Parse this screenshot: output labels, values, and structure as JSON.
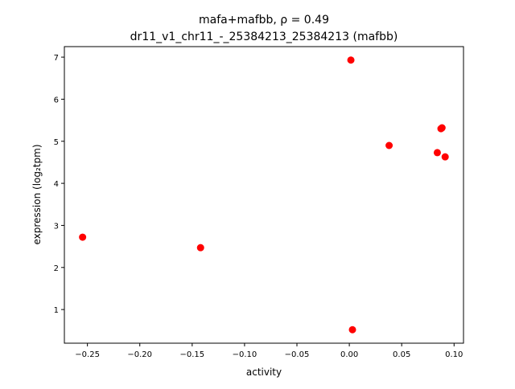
{
  "chart_data": {
    "type": "scatter",
    "title_line1": "mafa+mafbb, ρ = 0.49",
    "title_line2": "dr11_v1_chr11_-_25384213_25384213 (mafbb)",
    "xlabel": "activity",
    "ylabel": "expression (log₂tpm)",
    "xlim": [
      -0.272,
      0.109
    ],
    "ylim": [
      0.2,
      7.25
    ],
    "xticks": [
      -0.25,
      -0.2,
      -0.15,
      -0.1,
      -0.05,
      0.0,
      0.05,
      0.1
    ],
    "xtick_labels": [
      "−0.25",
      "−0.20",
      "−0.15",
      "−0.10",
      "−0.05",
      "0.00",
      "0.05",
      "0.10"
    ],
    "yticks": [
      1,
      2,
      3,
      4,
      5,
      6,
      7
    ],
    "ytick_labels": [
      "1",
      "2",
      "3",
      "4",
      "5",
      "6",
      "7"
    ],
    "grid": false,
    "marker_color": "#ff0000",
    "points": [
      {
        "x": -0.2546,
        "y": 2.72
      },
      {
        "x": -0.142,
        "y": 2.47
      },
      {
        "x": 0.0015,
        "y": 6.93
      },
      {
        "x": 0.003,
        "y": 0.52
      },
      {
        "x": 0.038,
        "y": 4.9
      },
      {
        "x": 0.084,
        "y": 4.73
      },
      {
        "x": 0.0875,
        "y": 5.3
      },
      {
        "x": 0.0885,
        "y": 5.32
      },
      {
        "x": 0.0915,
        "y": 4.63
      }
    ]
  }
}
